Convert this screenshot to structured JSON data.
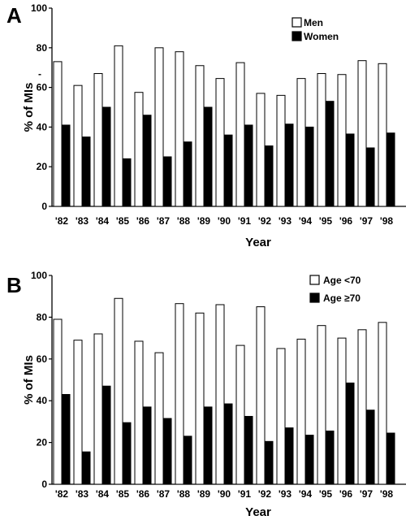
{
  "chart_data": [
    {
      "panel_label": "A",
      "type": "bar",
      "xlabel": "Year",
      "ylabel": "% of MIs",
      "ylim": [
        0,
        100
      ],
      "yticks": [
        0,
        20,
        40,
        60,
        80,
        100
      ],
      "categories": [
        "'82",
        "'83",
        "'84",
        "'85",
        "'86",
        "'87",
        "'88",
        "'89",
        "'90",
        "'91",
        "'92",
        "'93",
        "'94",
        "'95",
        "'96",
        "'97",
        "'98"
      ],
      "series": [
        {
          "name": "Men",
          "color": "#ffffff",
          "values": [
            73,
            61,
            67,
            81,
            57.5,
            80,
            78,
            71,
            64.5,
            72.5,
            57,
            56,
            64.5,
            67,
            66.5,
            73.5,
            72
          ]
        },
        {
          "name": "Women",
          "color": "#000000",
          "values": [
            41,
            35,
            50,
            24,
            46,
            25,
            32.5,
            50,
            36,
            41,
            30.5,
            41.5,
            40,
            53,
            36.5,
            29.5,
            37
          ]
        }
      ],
      "legend_position": "top-right",
      "annotations": [
        "-"
      ],
      "grid": false
    },
    {
      "panel_label": "B",
      "type": "bar",
      "xlabel": "Year",
      "ylabel": "% of MIs",
      "ylim": [
        0,
        100
      ],
      "yticks": [
        0,
        20,
        40,
        60,
        80,
        100
      ],
      "categories": [
        "'82",
        "'83",
        "'84",
        "'85",
        "'86",
        "'87",
        "'88",
        "'89",
        "'90",
        "'91",
        "'92",
        "'93",
        "'94",
        "'95",
        "'96",
        "'97",
        "'98"
      ],
      "series": [
        {
          "name": "Age <70",
          "color": "#ffffff",
          "values": [
            79,
            69,
            72,
            89,
            68.5,
            63,
            86.5,
            82,
            86,
            66.5,
            85,
            65,
            69.5,
            76,
            70,
            74,
            77.5
          ]
        },
        {
          "name": "Age ≥70",
          "color": "#000000",
          "values": [
            43,
            15.5,
            47,
            29.5,
            37,
            31.5,
            23,
            37,
            38.5,
            32.5,
            20.5,
            27,
            23.5,
            25.5,
            48.5,
            35.5,
            24.5
          ]
        }
      ],
      "legend_position": "top-right",
      "grid": false
    }
  ]
}
